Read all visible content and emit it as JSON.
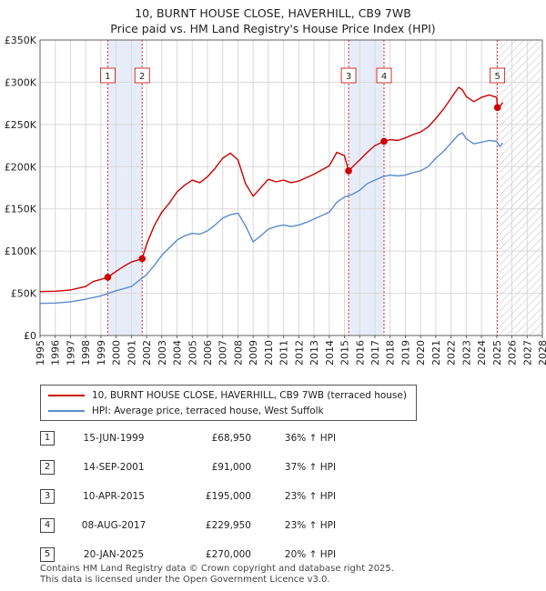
{
  "title_line1": "10, BURNT HOUSE CLOSE, HAVERHILL, CB9 7WB",
  "title_line2": "Price paid vs. HM Land Registry's House Price Index (HPI)",
  "colors": {
    "property": "#cc0000",
    "hpi": "#5b8ccc",
    "marker": "#cc0000",
    "shade": "#dde6f5"
  },
  "chart_data": {
    "type": "line",
    "ylim": [
      0,
      350000
    ],
    "xlim": [
      1995,
      2028
    ],
    "y_ticks": [
      {
        "value": 0,
        "label": "£0"
      },
      {
        "value": 50000,
        "label": "£50K"
      },
      {
        "value": 100000,
        "label": "£100K"
      },
      {
        "value": 150000,
        "label": "£150K"
      },
      {
        "value": 200000,
        "label": "£200K"
      },
      {
        "value": 250000,
        "label": "£250K"
      },
      {
        "value": 300000,
        "label": "£300K"
      },
      {
        "value": 350000,
        "label": "£350K"
      }
    ],
    "x_ticks": [
      "1995",
      "1996",
      "1997",
      "1998",
      "1999",
      "2000",
      "2001",
      "2002",
      "2003",
      "2004",
      "2005",
      "2006",
      "2007",
      "2008",
      "2009",
      "2010",
      "2011",
      "2012",
      "2013",
      "2014",
      "2015",
      "2016",
      "2017",
      "2018",
      "2019",
      "2020",
      "2021",
      "2022",
      "2023",
      "2024",
      "2025",
      "2026",
      "2027",
      "2028"
    ],
    "grid": true,
    "shaded_spans": [
      [
        1999.45,
        2001.71
      ],
      [
        2015.27,
        2017.6
      ]
    ],
    "forecast_from": 2025.2,
    "series": [
      {
        "name": "10, BURNT HOUSE CLOSE, HAVERHILL, CB9 7WB (terraced house)",
        "x": [
          1995,
          1996,
          1997,
          1998,
          1998.5,
          1999,
          1999.45,
          2000,
          2000.5,
          2001,
          2001.71,
          2002,
          2002.5,
          2003,
          2003.5,
          2004,
          2004.5,
          2005,
          2005.5,
          2006,
          2006.5,
          2007,
          2007.5,
          2008,
          2008.5,
          2009,
          2009.5,
          2010,
          2010.5,
          2011,
          2011.5,
          2012,
          2012.5,
          2013,
          2013.5,
          2014,
          2014.5,
          2015,
          2015.27,
          2015.6,
          2016,
          2016.5,
          2017,
          2017.6,
          2018,
          2018.5,
          2019,
          2019.5,
          2020,
          2020.5,
          2021,
          2021.5,
          2022,
          2022.5,
          2022.75,
          2023,
          2023.5,
          2024,
          2024.5,
          2025,
          2025.05,
          2025.2,
          2025.4
        ],
        "values": [
          52000,
          52500,
          54000,
          58000,
          64000,
          66500,
          68950,
          76000,
          82000,
          87000,
          91000,
          108000,
          130000,
          146000,
          157000,
          170000,
          178000,
          184000,
          181000,
          188000,
          198000,
          210000,
          216000,
          208000,
          180000,
          165000,
          175000,
          185000,
          182000,
          184000,
          181000,
          183000,
          187000,
          191000,
          196000,
          201000,
          217000,
          213000,
          195000,
          201000,
          208000,
          217000,
          225000,
          229950,
          232000,
          231000,
          234000,
          238000,
          241000,
          247000,
          257000,
          268000,
          281000,
          294000,
          291000,
          283000,
          277000,
          282000,
          285000,
          282000,
          270000,
          271000,
          276000
        ]
      },
      {
        "name": "HPI: Average price, terraced house, West Suffolk",
        "x": [
          1995,
          1996,
          1997,
          1998,
          1999,
          2000,
          2001,
          2002,
          2002.5,
          2003,
          2003.5,
          2004,
          2004.5,
          2005,
          2005.5,
          2006,
          2006.5,
          2007,
          2007.5,
          2008,
          2008.5,
          2009,
          2009.5,
          2010,
          2010.5,
          2011,
          2011.5,
          2012,
          2012.5,
          2013,
          2013.5,
          2014,
          2014.5,
          2015,
          2015.5,
          2016,
          2016.5,
          2017,
          2017.5,
          2018,
          2018.5,
          2019,
          2019.5,
          2020,
          2020.5,
          2021,
          2021.5,
          2022,
          2022.5,
          2022.75,
          2023,
          2023.5,
          2024,
          2024.5,
          2025,
          2025.2,
          2025.4
        ],
        "values": [
          38000,
          38500,
          40000,
          43000,
          47000,
          53000,
          58000,
          72000,
          83000,
          95000,
          104000,
          113000,
          118000,
          121000,
          120000,
          124000,
          131000,
          139000,
          143000,
          145000,
          130000,
          111000,
          118000,
          126000,
          129000,
          131000,
          129000,
          131000,
          134000,
          138000,
          142000,
          146000,
          158000,
          164000,
          167000,
          172000,
          180000,
          184000,
          188000,
          190000,
          189000,
          190000,
          193000,
          195000,
          200000,
          210000,
          218000,
          228000,
          238000,
          240000,
          233000,
          227000,
          229000,
          231000,
          230000,
          224000,
          228000
        ]
      }
    ],
    "sales": [
      {
        "id": "1",
        "x": 1999.45,
        "value": 68950
      },
      {
        "id": "2",
        "x": 2001.71,
        "value": 91000
      },
      {
        "id": "3",
        "x": 2015.27,
        "value": 195000
      },
      {
        "id": "4",
        "x": 2017.6,
        "value": 229950
      },
      {
        "id": "5",
        "x": 2025.05,
        "value": 270000
      }
    ],
    "legend": [
      "10, BURNT HOUSE CLOSE, HAVERHILL, CB9 7WB (terraced house)",
      "HPI: Average price, terraced house, West Suffolk"
    ]
  },
  "table": [
    {
      "id": "1",
      "date": "15-JUN-1999",
      "price": "£68,950",
      "hpi": "36% ↑ HPI"
    },
    {
      "id": "2",
      "date": "14-SEP-2001",
      "price": "£91,000",
      "hpi": "37% ↑ HPI"
    },
    {
      "id": "3",
      "date": "10-APR-2015",
      "price": "£195,000",
      "hpi": "23% ↑ HPI"
    },
    {
      "id": "4",
      "date": "08-AUG-2017",
      "price": "£229,950",
      "hpi": "23% ↑ HPI"
    },
    {
      "id": "5",
      "date": "20-JAN-2025",
      "price": "£270,000",
      "hpi": "20% ↑ HPI"
    }
  ],
  "footer_line1": "Contains HM Land Registry data © Crown copyright and database right 2025.",
  "footer_line2": "This data is licensed under the Open Government Licence v3.0."
}
